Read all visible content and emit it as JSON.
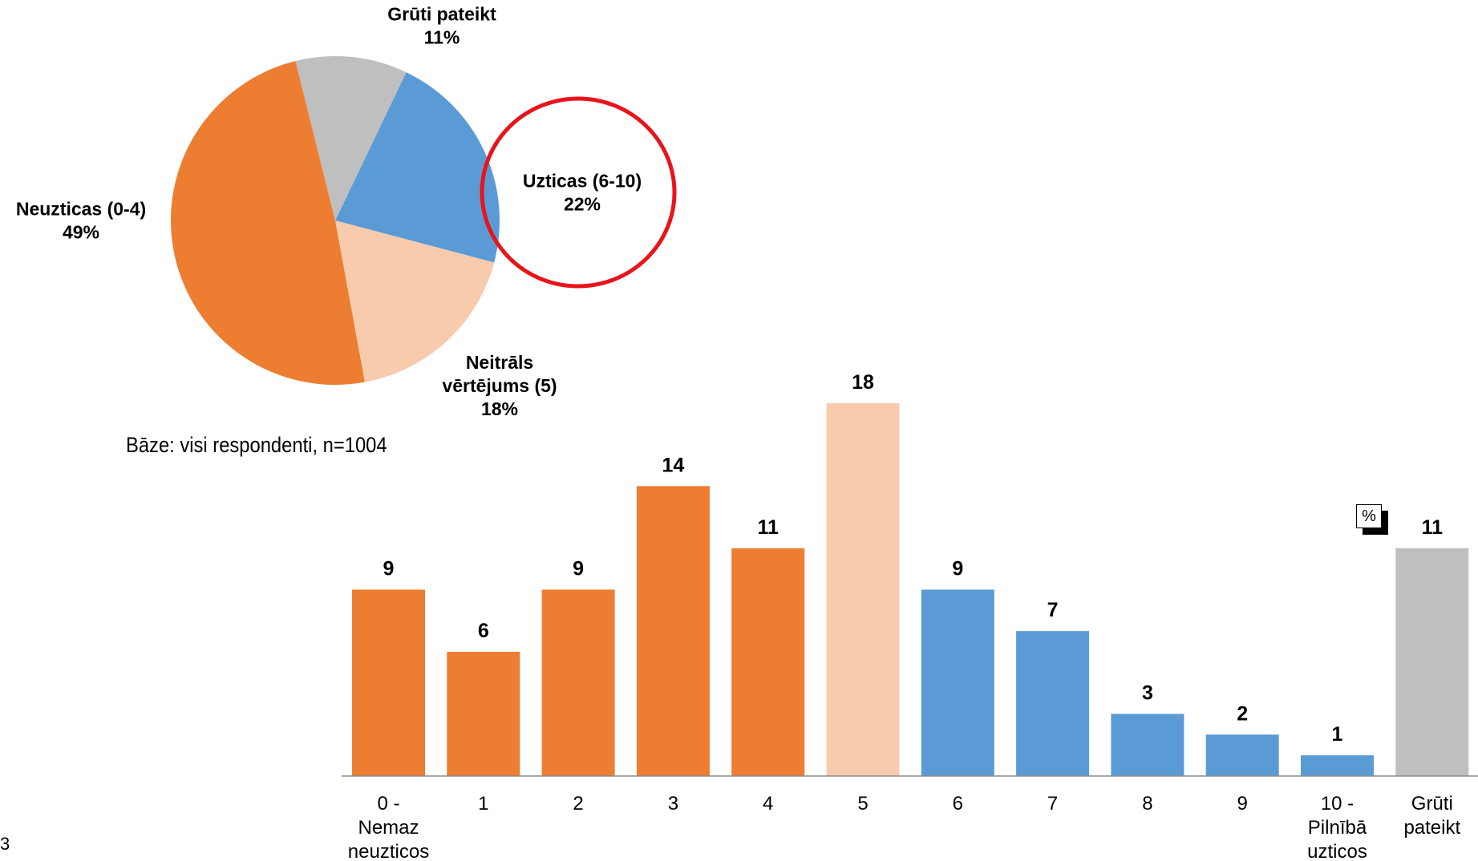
{
  "chart_data": [
    {
      "type": "pie",
      "title": "",
      "slices": [
        {
          "name": "Neuzticas (0-4)",
          "value": 49,
          "label": "49%",
          "color": "#ED7D31"
        },
        {
          "name": "Neitrāls vērtējums (5)",
          "name_lines": [
            "Neitrāls",
            "vērtējums (5)"
          ],
          "value": 18,
          "label": "18%",
          "color": "#F8CBAD"
        },
        {
          "name": "Uzticas (6-10)",
          "value": 22,
          "label": "22%",
          "color": "#5B9BD5"
        },
        {
          "name": "Grūti pateikt",
          "value": 11,
          "label": "11%",
          "color": "#BFBFBF"
        }
      ],
      "highlight": {
        "slice": "Uzticas (6-10)",
        "shape": "circle",
        "color": "#E8141B"
      }
    },
    {
      "type": "bar",
      "title": "",
      "unit_badge": "%",
      "categories": [
        {
          "lines": [
            "0 -",
            "Nemaz",
            "neuzticos"
          ]
        },
        {
          "lines": [
            "1"
          ]
        },
        {
          "lines": [
            "2"
          ]
        },
        {
          "lines": [
            "3"
          ]
        },
        {
          "lines": [
            "4"
          ]
        },
        {
          "lines": [
            "5"
          ]
        },
        {
          "lines": [
            "6"
          ]
        },
        {
          "lines": [
            "7"
          ]
        },
        {
          "lines": [
            "8"
          ]
        },
        {
          "lines": [
            "9"
          ]
        },
        {
          "lines": [
            "10 -",
            "Pilnībā",
            "uzticos"
          ]
        },
        {
          "lines": [
            "Grūti",
            "pateikt"
          ]
        }
      ],
      "values": [
        9,
        6,
        9,
        14,
        11,
        18,
        9,
        7,
        3,
        2,
        1,
        11
      ],
      "colors": [
        "#ED7D31",
        "#ED7D31",
        "#ED7D31",
        "#ED7D31",
        "#ED7D31",
        "#F8CBAD",
        "#5B9BD5",
        "#5B9BD5",
        "#5B9BD5",
        "#5B9BD5",
        "#5B9BD5",
        "#BFBFBF"
      ],
      "ylim": [
        0,
        18
      ],
      "grid": false,
      "legend": "none"
    }
  ],
  "base_note": "Bāze: visi respondenti, n=1004",
  "page_number": "3"
}
